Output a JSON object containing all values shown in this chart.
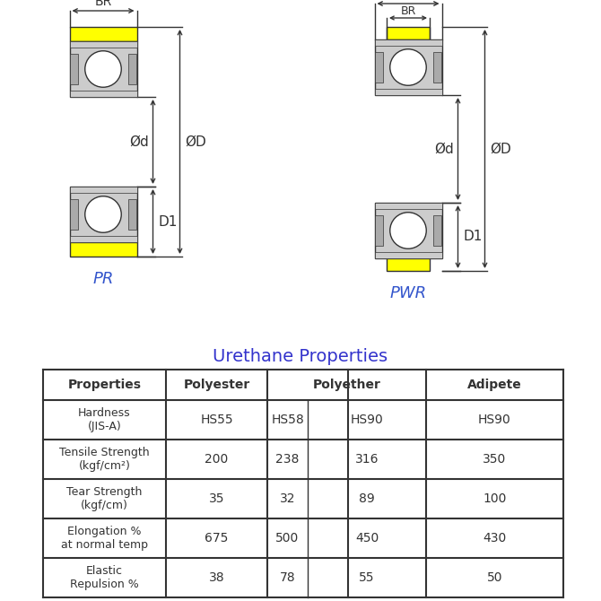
{
  "title_color": "#3333cc",
  "bg_color": "#ffffff",
  "label_color": "#3355cc",
  "table_title": "Urethane Properties",
  "table_rows": [
    [
      "Hardness\n(JIS-A)",
      "HS55",
      "HS58",
      "HS90",
      "HS90"
    ],
    [
      "Tensile Strength\n(kgf/cm²)",
      "200",
      "238",
      "316",
      "350"
    ],
    [
      "Tear Strength\n(kgf/cm)",
      "35",
      "32",
      "89",
      "100"
    ],
    [
      "Elongation %\nat normal temp",
      "675",
      "500",
      "450",
      "430"
    ],
    [
      "Elastic\nRepulsion %",
      "38",
      "78",
      "55",
      "50"
    ]
  ],
  "yellow_color": "#ffff00",
  "gray_color": "#aaaaaa",
  "light_gray": "#cccccc",
  "dark_color": "#333333"
}
